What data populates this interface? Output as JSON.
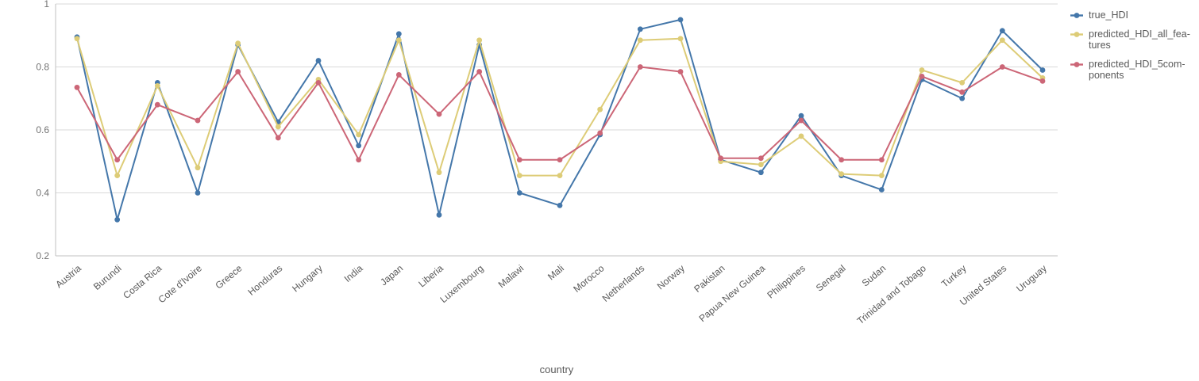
{
  "chart_data": {
    "type": "line",
    "title": "",
    "xlabel": "country",
    "ylabel": "",
    "ylim": [
      0.2,
      1.0
    ],
    "yticks": [
      1,
      0.8,
      0.6,
      0.4,
      0.2
    ],
    "ytick_labels": [
      "1",
      "0.8",
      "0.6",
      "0.4",
      "0.2"
    ],
    "grid": true,
    "legend_position": "top-right",
    "marker": "circle",
    "categories": [
      "Austria",
      "Burundi",
      "Costa Rica",
      "Cote d'Ivoire",
      "Greece",
      "Honduras",
      "Hungary",
      "India",
      "Japan",
      "Liberia",
      "Luxembourg",
      "Malawi",
      "Mali",
      "Morocco",
      "Netherlands",
      "Norway",
      "Pakistan",
      "Papua New Guinea",
      "Philippines",
      "Senegal",
      "Sudan",
      "Trinidad and Tobago",
      "Turkey",
      "United States",
      "Uruguay"
    ],
    "series": [
      {
        "name": "true_HDI",
        "legend_lines": [
          "true_HDI"
        ],
        "color": "#4477aa",
        "values": [
          0.895,
          0.315,
          0.75,
          0.4,
          0.87,
          0.625,
          0.82,
          0.55,
          0.905,
          0.33,
          0.87,
          0.4,
          0.36,
          0.585,
          0.92,
          0.95,
          0.505,
          0.465,
          0.645,
          0.455,
          0.41,
          0.76,
          0.7,
          0.915,
          0.79
        ]
      },
      {
        "name": "predicted_HDI_all_features",
        "legend_lines": [
          "predicted_HDI_all_fea-",
          "tures"
        ],
        "color": "#ddcc77",
        "values": [
          0.89,
          0.455,
          0.74,
          0.48,
          0.875,
          0.61,
          0.76,
          0.585,
          0.885,
          0.465,
          0.885,
          0.455,
          0.455,
          0.665,
          0.885,
          0.89,
          0.5,
          0.49,
          0.58,
          0.46,
          0.455,
          0.79,
          0.75,
          0.885,
          0.765
        ]
      },
      {
        "name": "predicted_HDI_5components",
        "legend_lines": [
          "predicted_HDI_5com-",
          "ponents"
        ],
        "color": "#cc6677",
        "values": [
          0.735,
          0.505,
          0.68,
          0.63,
          0.785,
          0.575,
          0.75,
          0.505,
          0.775,
          0.65,
          0.785,
          0.505,
          0.505,
          0.59,
          0.8,
          0.785,
          0.51,
          0.51,
          0.63,
          0.505,
          0.505,
          0.77,
          0.72,
          0.8,
          0.755
        ]
      }
    ]
  },
  "colors": {
    "background": "#ffffff",
    "grid": "#d9d9d9",
    "axis": "#c2c2c2",
    "tick_text": "#737373",
    "label_text": "#595959"
  }
}
